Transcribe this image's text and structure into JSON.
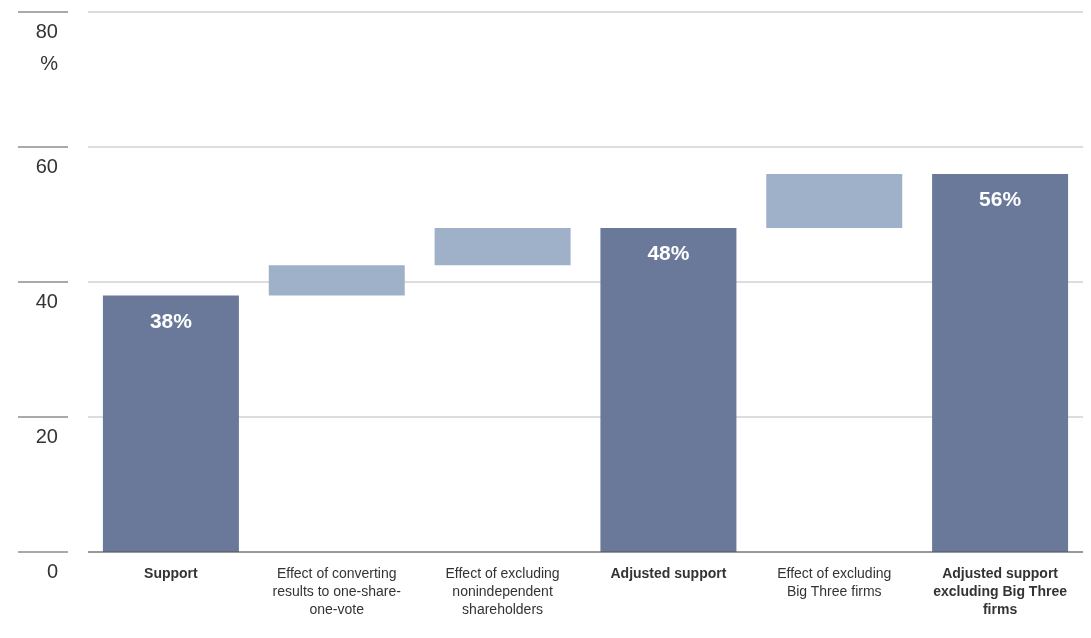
{
  "chart_data": {
    "type": "bar",
    "ylabel": "%",
    "categories": [
      "Support",
      "Effect of converting results to one-share-one-vote",
      "Effect of excluding nonindependent shareholders",
      "Adjusted support",
      "Effect of excluding Big Three firms",
      "Adjusted support excluding Big Three firms"
    ],
    "values": [
      38,
      4.5,
      5.5,
      48,
      8,
      56
    ],
    "base": [
      null,
      38,
      42.5,
      null,
      48,
      null
    ],
    "colors": [
      "#6a7899",
      "#9fb1c9",
      "#9fb1c9",
      "#6a7899",
      "#9fb1c9",
      "#6a7899"
    ],
    "value_labels": [
      "38%",
      null,
      null,
      "48%",
      null,
      "56%"
    ],
    "ylim": [
      0,
      80
    ],
    "yticks": [
      0,
      20,
      40,
      60,
      80
    ],
    "grid": "y"
  }
}
